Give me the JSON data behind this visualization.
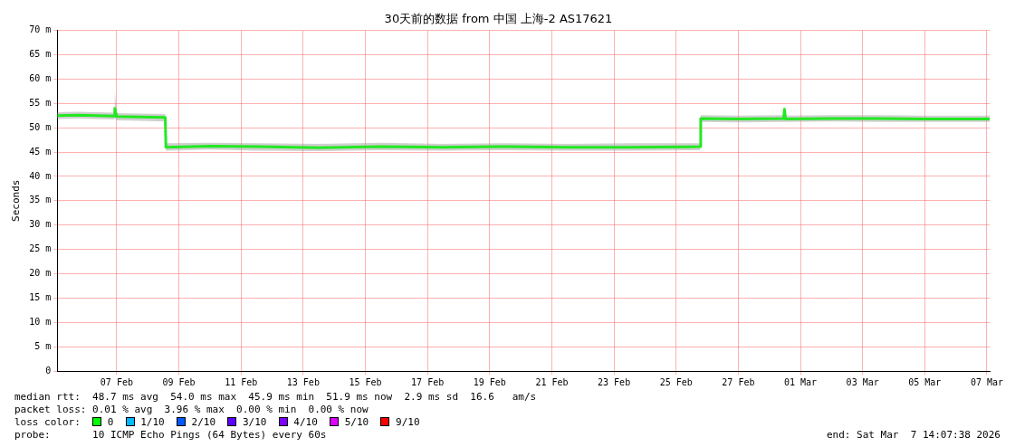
{
  "chart_data": {
    "type": "line",
    "title": "30天前的数据 from 中国 上海-2 AS17621",
    "ylabel": "Seconds",
    "x": [
      "2026-02-05T14:07",
      "2026-02-06T06:00",
      "2026-02-06T20:00",
      "2026-02-07T10:00",
      "2026-02-07T10:30",
      "2026-02-07T12:00",
      "2026-02-08T06:00",
      "2026-02-09T01:30",
      "2026-02-09T02:00",
      "2026-02-10T12:00",
      "2026-02-12T00:00",
      "2026-02-14T00:00",
      "2026-02-16T00:00",
      "2026-02-18T00:00",
      "2026-02-20T00:00",
      "2026-02-22T00:00",
      "2026-02-24T00:00",
      "2026-02-26T06:30",
      "2026-02-26T07:00",
      "2026-02-27T12:00",
      "2026-02-28T23:00",
      "2026-02-28T23:40",
      "2026-03-01T00:30",
      "2026-03-02T12:00",
      "2026-03-04T00:00",
      "2026-03-05T12:00",
      "2026-03-07T14:07"
    ],
    "series": [
      {
        "color": "#22e822",
        "values": [
          52.5,
          52.6,
          52.5,
          52.4,
          54.0,
          52.3,
          52.2,
          52.1,
          46.0,
          46.2,
          46.1,
          45.9,
          46.1,
          46.0,
          46.1,
          46.0,
          46.0,
          46.1,
          51.9,
          51.8,
          51.9,
          53.8,
          51.8,
          51.9,
          51.9,
          51.8,
          51.8
        ],
        "lower": [
          51.8,
          51.9,
          51.8,
          51.7,
          52.0,
          51.5,
          51.4,
          51.3,
          45.3,
          45.5,
          45.3,
          45.2,
          45.4,
          45.3,
          45.4,
          45.3,
          45.3,
          45.4,
          51.2,
          51.1,
          51.2,
          51.2,
          51.2,
          51.3,
          51.2,
          51.2,
          51.2
        ],
        "upper": [
          53.2,
          53.3,
          53.2,
          53.1,
          57.3,
          53.0,
          52.9,
          52.8,
          46.8,
          46.9,
          46.8,
          46.7,
          46.9,
          46.7,
          46.8,
          46.7,
          46.8,
          46.8,
          52.6,
          52.5,
          52.6,
          54.3,
          52.5,
          52.6,
          52.6,
          52.5,
          52.5
        ]
      }
    ],
    "xlim": [
      "2026-02-05T14:07",
      "2026-03-07T14:07"
    ],
    "xticks": [
      {
        "value": "2026-02-07T12:00",
        "label": "07 Feb"
      },
      {
        "value": "2026-02-09T12:00",
        "label": "09 Feb"
      },
      {
        "value": "2026-02-11T12:00",
        "label": "11 Feb"
      },
      {
        "value": "2026-02-13T12:00",
        "label": "13 Feb"
      },
      {
        "value": "2026-02-15T12:00",
        "label": "15 Feb"
      },
      {
        "value": "2026-02-17T12:00",
        "label": "17 Feb"
      },
      {
        "value": "2026-02-19T12:00",
        "label": "19 Feb"
      },
      {
        "value": "2026-02-21T12:00",
        "label": "21 Feb"
      },
      {
        "value": "2026-02-23T12:00",
        "label": "23 Feb"
      },
      {
        "value": "2026-02-25T12:00",
        "label": "25 Feb"
      },
      {
        "value": "2026-02-27T12:00",
        "label": "27 Feb"
      },
      {
        "value": "2026-03-01T12:00",
        "label": "01 Mar"
      },
      {
        "value": "2026-03-03T12:00",
        "label": "03 Mar"
      },
      {
        "value": "2026-03-05T12:00",
        "label": "05 Mar"
      },
      {
        "value": "2026-03-07T12:00",
        "label": "07 Mar"
      }
    ],
    "ylim": [
      0,
      70
    ],
    "yticks": [
      0,
      {
        "value": 5,
        "label": "5 m"
      },
      {
        "value": 10,
        "label": "10 m"
      },
      {
        "value": 15,
        "label": "15 m"
      },
      {
        "value": 20,
        "label": "20 m"
      },
      {
        "value": 25,
        "label": "25 m"
      },
      {
        "value": 30,
        "label": "30 m"
      },
      {
        "value": 35,
        "label": "35 m"
      },
      {
        "value": 40,
        "label": "40 m"
      },
      {
        "value": 45,
        "label": "45 m"
      },
      {
        "value": 50,
        "label": "50 m"
      },
      {
        "value": 55,
        "label": "55 m"
      },
      {
        "value": 60,
        "label": "60 m"
      },
      {
        "value": 65,
        "label": "65 m"
      },
      {
        "value": 70,
        "label": "70 m"
      }
    ],
    "grid": true,
    "legend": false,
    "marker": "none",
    "line_style": "solid",
    "annotations": [
      "median rtt:  48.7 ms avg  54.0 ms max  45.9 ms min  51.9 ms now  2.9 ms sd  16.6   am/s",
      "packet loss: 0.01 % avg  3.96 % max  0.00 % min  0.00 % now",
      "loss color:  0  1/10  2/10  3/10  4/10  5/10  9/10",
      "probe:       10 ICMP Echo Pings (64 Bytes) every 60s",
      "end: Sat Mar  7 14:07:38 2026"
    ]
  }
}
